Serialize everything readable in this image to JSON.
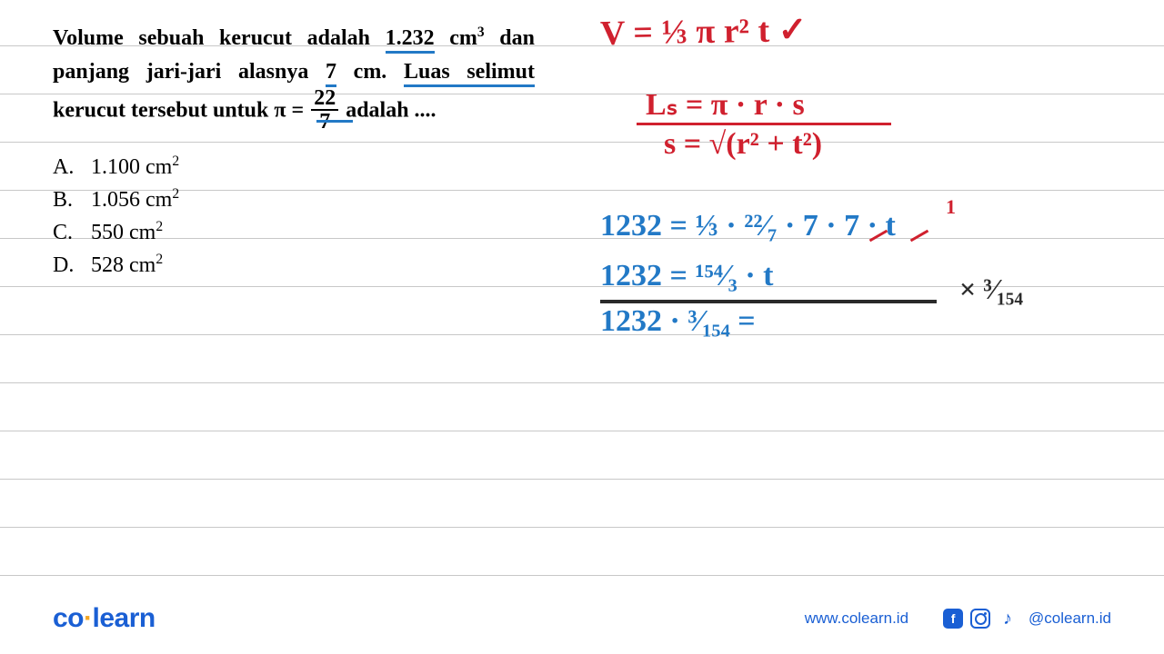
{
  "colors": {
    "text": "#000000",
    "underline": "#2279c6",
    "red_ink": "#d0202e",
    "blue_ink": "#2279c6",
    "dark_ink": "#2a2a2a",
    "rule": "#c8c8c8",
    "brand": "#1a5fd4",
    "accent": "#f5a623"
  },
  "ruled_line_positions": [
    50,
    103,
    156,
    209,
    262,
    315,
    368,
    421,
    474,
    527,
    580,
    633
  ],
  "question": {
    "line1_pre": "Volume sebuah kerucut adalah ",
    "line1_u": "1.232",
    "line1_post": " cm",
    "line1_sup": "3",
    "line1_end": " dan",
    "line2_pre": "panjang jari-jari alasnya ",
    "line2_u": "7",
    "line2_post": " cm. ",
    "line2_u2": "Luas selimut",
    "line3_pre": "kerucut tersebut untuk  π = ",
    "frac_num": "22",
    "frac_den": "7",
    "line3_post": "  adalah ....",
    "options": [
      {
        "letter": "A.",
        "text": "1.100 cm",
        "sup": "2"
      },
      {
        "letter": "B.",
        "text": "1.056 cm",
        "sup": "2"
      },
      {
        "letter": "C.",
        "text": "550 cm",
        "sup": "2"
      },
      {
        "letter": "D.",
        "text": "528 cm",
        "sup": "2"
      }
    ]
  },
  "handwriting": {
    "red1": "V = ⅓ π r² t ✓",
    "red2": "Lₛ = π · r · s",
    "red3": "s = √(r² + t²)",
    "blue1": "1232 = ⅓ · ²²⁄₇ · 7 · 7 · t",
    "blue1_sup": "1",
    "blue2": "1232 = ¹⁵⁴⁄₃ · t",
    "blue3": "1232 · ³⁄₁₅₄ =",
    "dark1": "× ³⁄₁₅₄"
  },
  "footer": {
    "logo_a": "co",
    "logo_b": "learn",
    "url": "www.colearn.id",
    "handle": "@colearn.id"
  }
}
